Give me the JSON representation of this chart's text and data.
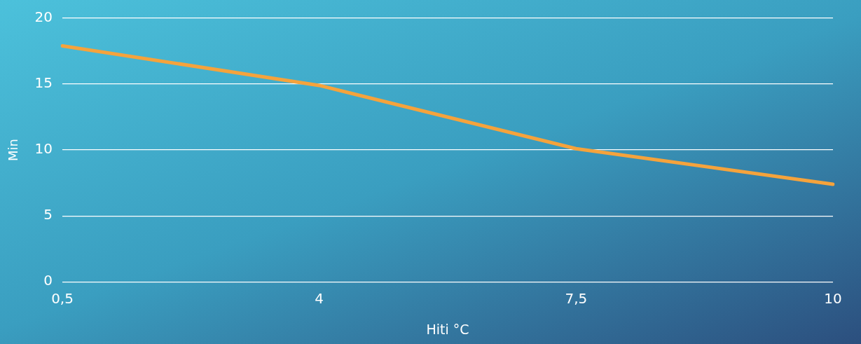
{
  "chart_data": {
    "type": "line",
    "xlabel": "Hiti °C",
    "ylabel": "Min",
    "categories": [
      "0,5",
      "4",
      "7,5",
      "10"
    ],
    "series": [
      {
        "color": "#f5a33c",
        "values": [
          17.9,
          14.9,
          10.1,
          7.4
        ]
      }
    ],
    "ylim": [
      0,
      20
    ],
    "yticks": [
      0,
      5,
      10,
      15,
      20
    ],
    "grid": "y",
    "legend": false,
    "marker": "none",
    "line_style": "solid"
  }
}
